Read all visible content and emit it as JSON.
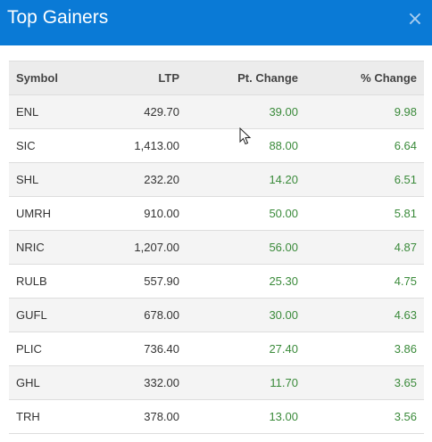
{
  "header": {
    "title": "Top Gainers",
    "close_label": "×"
  },
  "table": {
    "columns": [
      "Symbol",
      "LTP",
      "Pt. Change",
      "% Change"
    ],
    "rows": [
      {
        "symbol": "ENL",
        "ltp": "429.70",
        "pt_change": "39.00",
        "pct_change": "9.98"
      },
      {
        "symbol": "SIC",
        "ltp": "1,413.00",
        "pt_change": "88.00",
        "pct_change": "6.64"
      },
      {
        "symbol": "SHL",
        "ltp": "232.20",
        "pt_change": "14.20",
        "pct_change": "6.51"
      },
      {
        "symbol": "UMRH",
        "ltp": "910.00",
        "pt_change": "50.00",
        "pct_change": "5.81"
      },
      {
        "symbol": "NRIC",
        "ltp": "1,207.00",
        "pt_change": "56.00",
        "pct_change": "4.87"
      },
      {
        "symbol": "RULB",
        "ltp": "557.90",
        "pt_change": "25.30",
        "pct_change": "4.75"
      },
      {
        "symbol": "GUFL",
        "ltp": "678.00",
        "pt_change": "30.00",
        "pct_change": "4.63"
      },
      {
        "symbol": "PLIC",
        "ltp": "736.40",
        "pt_change": "27.40",
        "pct_change": "3.86"
      },
      {
        "symbol": "GHL",
        "ltp": "332.00",
        "pt_change": "11.70",
        "pct_change": "3.65"
      },
      {
        "symbol": "TRH",
        "ltp": "378.00",
        "pt_change": "13.00",
        "pct_change": "3.56"
      }
    ]
  },
  "colors": {
    "header_bg": "#0a7ad6",
    "positive": "#3a8a3a"
  }
}
